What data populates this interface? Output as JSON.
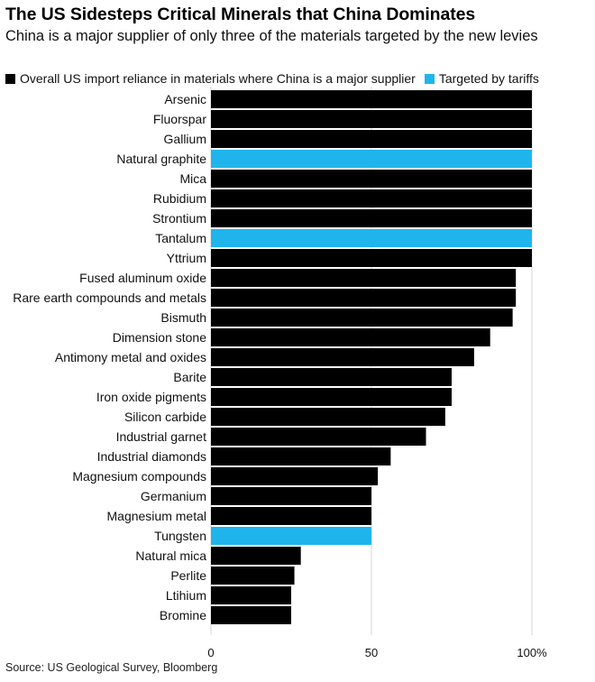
{
  "header": {
    "title": "The US Sidesteps Critical Minerals that China Dominates",
    "subtitle": "China is a major supplier of only three of the materials targeted by the new levies"
  },
  "legend": {
    "overall_label": "Overall US import reliance in materials where China is a major supplier",
    "targeted_label": "Targeted by tariffs"
  },
  "colors": {
    "overall": "#000000",
    "targeted": "#1fb5ec"
  },
  "source": "Source: US Geological Survey, Bloomberg",
  "chart_data": {
    "type": "bar",
    "orientation": "horizontal",
    "title": "The US Sidesteps Critical Minerals that China Dominates",
    "xlabel": "",
    "ylabel": "",
    "xlim": [
      0,
      100
    ],
    "xticks": [
      0,
      50,
      100
    ],
    "xtick_labels": [
      "0",
      "50",
      "100%"
    ],
    "grid": true,
    "legend_position": "top-left",
    "series": [
      {
        "name": "Overall US import reliance in materials where China is a major supplier",
        "color": "#000000"
      },
      {
        "name": "Targeted by tariffs",
        "color": "#1fb5ec"
      }
    ],
    "categories": [
      "Arsenic",
      "Fluorspar",
      "Gallium",
      "Natural graphite",
      "Mica",
      "Rubidium",
      "Strontium",
      "Tantalum",
      "Yttrium",
      "Fused aluminum oxide",
      "Rare earth compounds and metals",
      "Bismuth",
      "Dimension stone",
      "Antimony metal and oxides",
      "Barite",
      "Iron oxide pigments",
      "Silicon carbide",
      "Industrial garnet",
      "Industrial diamonds",
      "Magnesium compounds",
      "Germanium",
      "Magnesium metal",
      "Tungsten",
      "Natural mica",
      "Perlite",
      "Ltihium",
      "Bromine"
    ],
    "values": [
      100,
      100,
      100,
      100,
      100,
      100,
      100,
      100,
      100,
      95,
      95,
      94,
      87,
      82,
      75,
      75,
      73,
      67,
      56,
      52,
      50,
      50,
      50,
      28,
      26,
      25,
      25
    ],
    "targeted": [
      false,
      false,
      false,
      true,
      false,
      false,
      false,
      true,
      false,
      false,
      false,
      false,
      false,
      false,
      false,
      false,
      false,
      false,
      false,
      false,
      false,
      false,
      true,
      false,
      false,
      false,
      false
    ]
  }
}
